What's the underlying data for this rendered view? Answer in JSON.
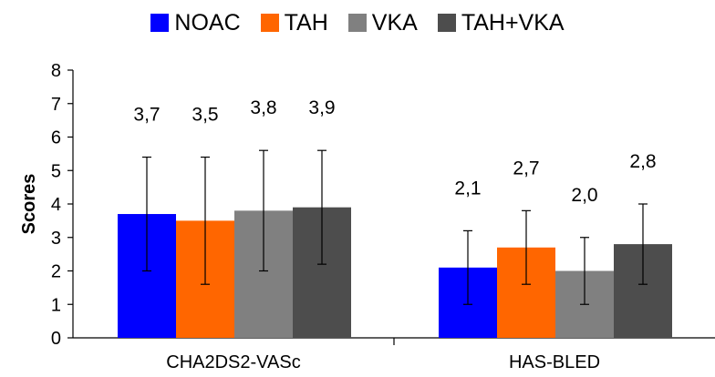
{
  "chart_data": {
    "type": "bar",
    "title": "",
    "xlabel": "",
    "ylabel": "Scores",
    "ylim": [
      0,
      8
    ],
    "yticks": [
      0,
      1,
      2,
      3,
      4,
      5,
      6,
      7,
      8
    ],
    "categories": [
      "CHA2DS2-VASc",
      "HAS-BLED"
    ],
    "legend_position": "top",
    "grid": false,
    "series": [
      {
        "name": "NOAC",
        "color": "#0000ff",
        "values": [
          3.7,
          2.1
        ],
        "labels": [
          "3,7",
          "2,1"
        ],
        "error_low": [
          2.0,
          1.0
        ],
        "error_high": [
          5.4,
          3.2
        ]
      },
      {
        "name": "TAH",
        "color": "#ff6600",
        "values": [
          3.5,
          2.7
        ],
        "labels": [
          "3,5",
          "2,7"
        ],
        "error_low": [
          1.6,
          1.6
        ],
        "error_high": [
          5.4,
          3.8
        ]
      },
      {
        "name": "VKA",
        "color": "#808080",
        "values": [
          3.8,
          2.0
        ],
        "labels": [
          "3,8",
          "2,0"
        ],
        "error_low": [
          2.0,
          1.0
        ],
        "error_high": [
          5.6,
          3.0
        ]
      },
      {
        "name": "TAH+VKA",
        "color": "#4d4d4d",
        "values": [
          3.9,
          2.8
        ],
        "labels": [
          "3,9",
          "2,8"
        ],
        "error_low": [
          2.2,
          1.6
        ],
        "error_high": [
          5.6,
          4.0
        ]
      }
    ]
  }
}
